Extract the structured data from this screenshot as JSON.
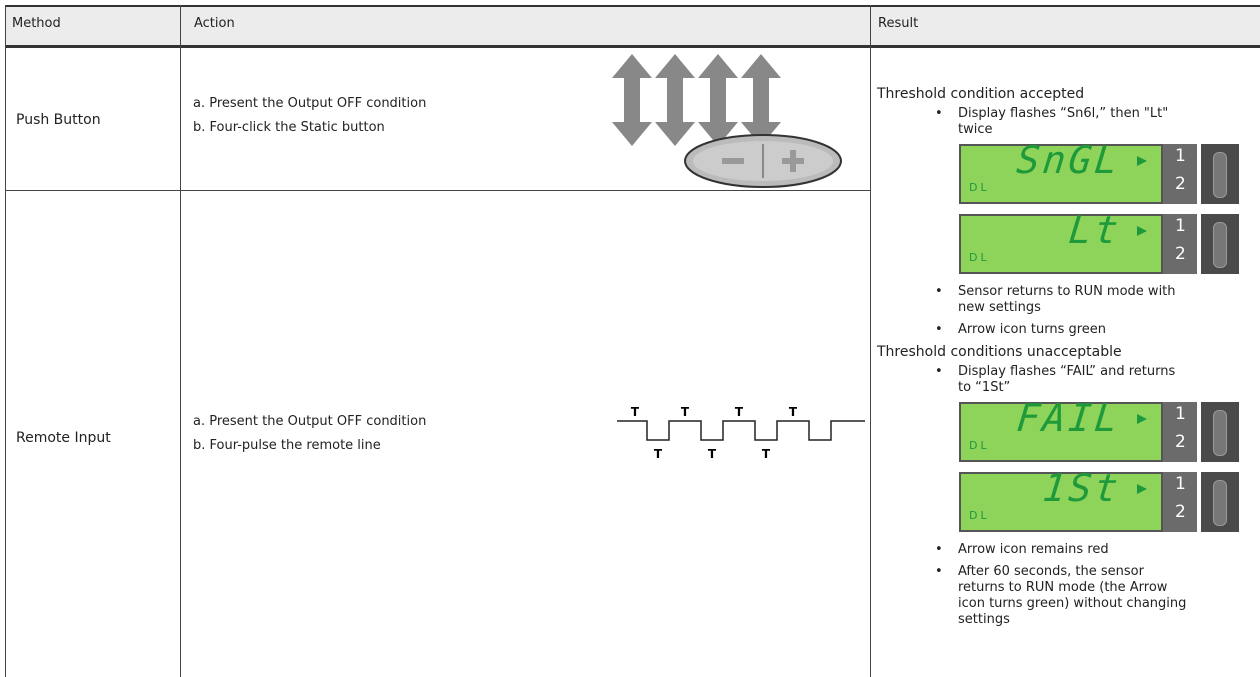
{
  "table": {
    "headers": [
      "Method",
      "Action",
      "Result"
    ],
    "rows": [
      {
        "method": "Push Button",
        "actions": [
          "a. Present the Output OFF condition",
          "b. Four-click the Static button"
        ]
      },
      {
        "method": "Remote Input",
        "actions": [
          "a. Present the Output OFF condition",
          "b. Four-pulse the remote line"
        ],
        "pulse_labels": [
          "T",
          "T",
          "T",
          "T",
          "T",
          "T",
          "T"
        ]
      }
    ],
    "result": {
      "sections": [
        {
          "heading": "Threshold condition accepted",
          "items": [
            {
              "text": "Display flashes “Sn6l,” then \"Lt\" twice",
              "displays": [
                {
                  "readout": "SnGL",
                  "tag": "DL",
                  "channels": [
                    "1",
                    "2"
                  ]
                },
                {
                  "readout": "Lt",
                  "tag": "DL",
                  "channels": [
                    "1",
                    "2"
                  ]
                }
              ]
            },
            {
              "text": "Sensor returns to RUN mode with new settings"
            },
            {
              "text": "Arrow icon turns green"
            }
          ]
        },
        {
          "heading": "Threshold conditions unacceptable",
          "items": [
            {
              "text": "Display flashes “FAIL” and returns to “1St”",
              "displays": [
                {
                  "readout": "FAIL",
                  "tag": "DL",
                  "channels": [
                    "1",
                    "2"
                  ]
                },
                {
                  "readout": "1St",
                  "tag": "DL",
                  "channels": [
                    "1",
                    "2"
                  ]
                }
              ]
            },
            {
              "text": "Arrow icon remains red"
            },
            {
              "text": "After 60 seconds, the sensor returns to RUN mode (the Arrow icon turns green) without changing settings"
            }
          ]
        }
      ]
    }
  }
}
